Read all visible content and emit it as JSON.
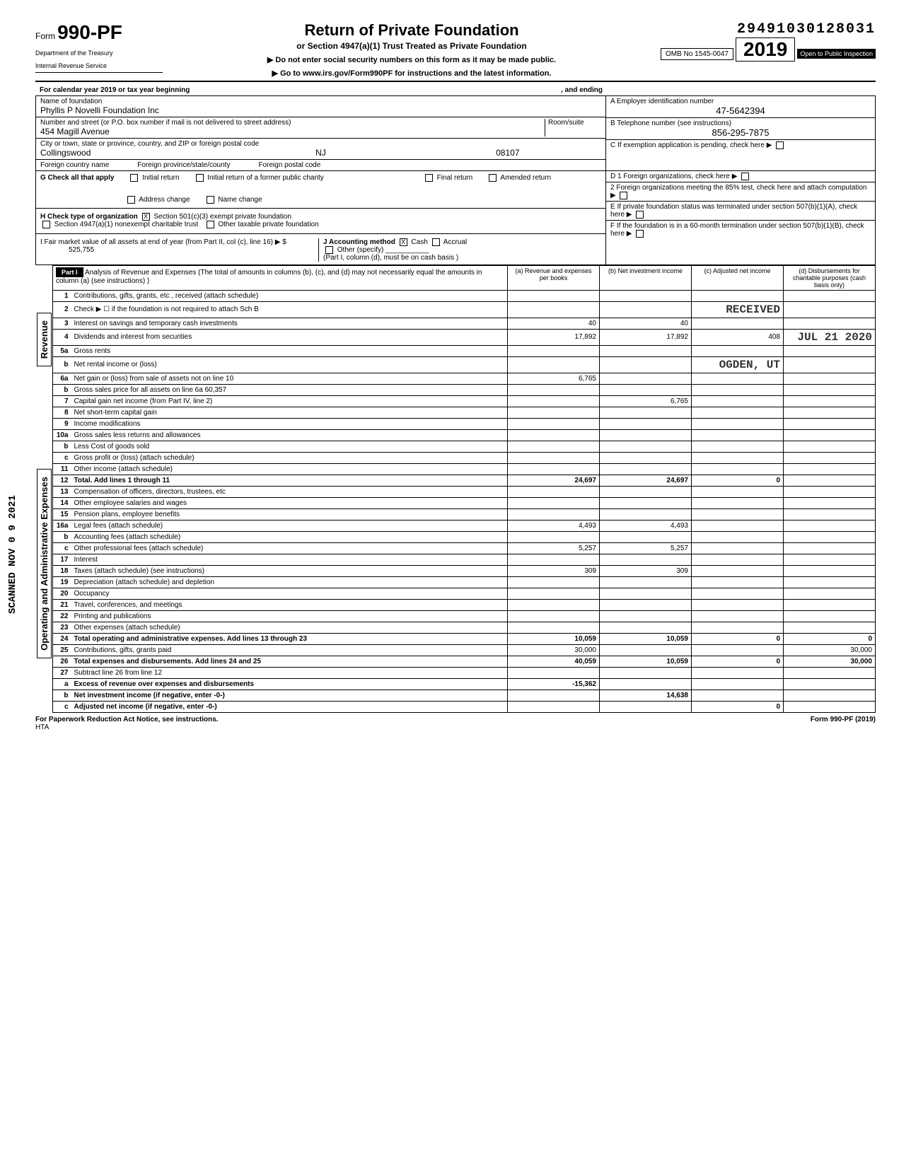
{
  "header": {
    "dln": "29491030128031",
    "form_number": "990-PF",
    "form_prefix": "Form",
    "dept1": "Department of the Treasury",
    "dept2": "Internal Revenue Service",
    "title": "Return of Private Foundation",
    "subtitle": "or Section 4947(a)(1) Trust Treated as Private Foundation",
    "instruct1": "▶  Do not enter social security numbers on this form as it may be made public.",
    "instruct2": "▶  Go to www.irs.gov/Form990PF for instructions and the latest information.",
    "omb": "OMB No 1545-0047",
    "year": "2019",
    "year_prefix": "20",
    "inspection": "Open to Public Inspection",
    "cal_year": "For calendar year 2019 or tax year beginning",
    "ending": ", and ending"
  },
  "entity": {
    "name_label": "Name of foundation",
    "name": "Phyllis P Novelli Foundation Inc",
    "addr_label": "Number and street (or P.O. box number if mail is not delivered to street address)",
    "room_label": "Room/suite",
    "addr": "454 Magill Avenue",
    "city_label": "City or town, state or province, country, and ZIP or foreign postal code",
    "city": "Collingswood",
    "state": "NJ",
    "zip": "08107",
    "foreign_country_label": "Foreign country name",
    "foreign_province_label": "Foreign province/state/county",
    "foreign_postal_label": "Foreign postal code",
    "ein_label": "A Employer identification number",
    "ein": "47-5642394",
    "phone_label": "B Telephone number (see instructions)",
    "phone": "856-295-7875",
    "c_label": "C  If exemption application is pending, check here",
    "d1_label": "D 1  Foreign organizations, check here",
    "d2_label": "2  Foreign organizations meeting the 85% test, check here and attach computation",
    "e_label": "E  If private foundation status was terminated under section 507(b)(1)(A), check here",
    "f_label": "F  If the foundation is in a 60-month termination under section 507(b)(1)(B), check here"
  },
  "section_g": {
    "label": "G  Check all that apply",
    "initial": "Initial return",
    "initial_former": "Initial return of a former public charity",
    "final": "Final return",
    "amended": "Amended return",
    "addr_change": "Address change",
    "name_change": "Name change"
  },
  "section_h": {
    "label": "H  Check type of organization",
    "opt1": "Section 501(c)(3) exempt private foundation",
    "opt2": "Section 4947(a)(1) nonexempt charitable trust",
    "opt3": "Other taxable private foundation"
  },
  "section_i": {
    "label": "I   Fair market value of all assets at end of year (from Part II, col (c), line 16) ▶ $",
    "value": "525,755"
  },
  "section_j": {
    "label": "J   Accounting method",
    "cash": "Cash",
    "accrual": "Accrual",
    "other": "Other (specify)",
    "note": "(Part I, column (d), must be on cash basis )"
  },
  "part1": {
    "header": "Part I",
    "desc": "Analysis of Revenue and Expenses (The total of amounts in columns (b), (c), and (d) may not necessarily equal the amounts in column (a) (see instructions) )",
    "col_a": "(a) Revenue and expenses per books",
    "col_b": "(b) Net investment income",
    "col_c": "(c) Adjusted net income",
    "col_d": "(d) Disbursements for charitable purposes (cash basis only)"
  },
  "sidelabels": {
    "revenue": "Revenue",
    "opex": "Operating and Administrative Expenses"
  },
  "rows": [
    {
      "n": "1",
      "label": "Contributions, gifts, grants, etc , received (attach schedule)",
      "a": "",
      "b": "",
      "c": "",
      "d": ""
    },
    {
      "n": "2",
      "label": "Check ▶ ☐ if the foundation is not required to attach Sch B",
      "a": "",
      "b": "",
      "c": "",
      "d": "",
      "stamp_c": "RECEIVED"
    },
    {
      "n": "3",
      "label": "Interest on savings and temporary cash investments",
      "a": "40",
      "b": "40",
      "c": "",
      "d": ""
    },
    {
      "n": "4",
      "label": "Dividends and interest from securities",
      "a": "17,892",
      "b": "17,892",
      "c": "408",
      "d": "JUL 21 2020",
      "stamp": true
    },
    {
      "n": "5a",
      "label": "Gross rents",
      "a": "",
      "b": "",
      "c": "",
      "d": ""
    },
    {
      "n": "b",
      "label": "Net rental income or (loss)",
      "a": "",
      "b": "",
      "c": "",
      "d": "",
      "stamp_c": "OGDEN, UT"
    },
    {
      "n": "6a",
      "label": "Net gain or (loss) from sale of assets not on line 10",
      "a": "6,765",
      "b": "",
      "c": "",
      "d": ""
    },
    {
      "n": "b",
      "label": "Gross sales price for all assets on line 6a                    60,357",
      "a": "",
      "b": "",
      "c": "",
      "d": ""
    },
    {
      "n": "7",
      "label": "Capital gain net income (from Part IV, line 2)",
      "a": "",
      "b": "6,765",
      "c": "",
      "d": ""
    },
    {
      "n": "8",
      "label": "Net short-term capital gain",
      "a": "",
      "b": "",
      "c": "",
      "d": ""
    },
    {
      "n": "9",
      "label": "Income modifications",
      "a": "",
      "b": "",
      "c": "",
      "d": ""
    },
    {
      "n": "10a",
      "label": "Gross sales less returns and allowances",
      "a": "",
      "b": "",
      "c": "",
      "d": ""
    },
    {
      "n": "b",
      "label": "Less Cost of goods sold",
      "a": "",
      "b": "",
      "c": "",
      "d": ""
    },
    {
      "n": "c",
      "label": "Gross profit or (loss) (attach schedule)",
      "a": "",
      "b": "",
      "c": "",
      "d": ""
    },
    {
      "n": "11",
      "label": "Other income (attach schedule)",
      "a": "",
      "b": "",
      "c": "",
      "d": ""
    },
    {
      "n": "12",
      "label": "Total. Add lines 1 through 11",
      "a": "24,697",
      "b": "24,697",
      "c": "0",
      "d": "",
      "bold": true
    },
    {
      "n": "13",
      "label": "Compensation of officers, directors, trustees, etc",
      "a": "",
      "b": "",
      "c": "",
      "d": ""
    },
    {
      "n": "14",
      "label": "Other employee salaries and wages",
      "a": "",
      "b": "",
      "c": "",
      "d": ""
    },
    {
      "n": "15",
      "label": "Pension plans, employee benefits",
      "a": "",
      "b": "",
      "c": "",
      "d": ""
    },
    {
      "n": "16a",
      "label": "Legal fees (attach schedule)",
      "a": "4,493",
      "b": "4,493",
      "c": "",
      "d": ""
    },
    {
      "n": "b",
      "label": "Accounting fees (attach schedule)",
      "a": "",
      "b": "",
      "c": "",
      "d": ""
    },
    {
      "n": "c",
      "label": "Other professional fees (attach schedule)",
      "a": "5,257",
      "b": "5,257",
      "c": "",
      "d": ""
    },
    {
      "n": "17",
      "label": "Interest",
      "a": "",
      "b": "",
      "c": "",
      "d": ""
    },
    {
      "n": "18",
      "label": "Taxes (attach schedule) (see instructions)",
      "a": "309",
      "b": "309",
      "c": "",
      "d": ""
    },
    {
      "n": "19",
      "label": "Depreciation (attach schedule) and depletion",
      "a": "",
      "b": "",
      "c": "",
      "d": ""
    },
    {
      "n": "20",
      "label": "Occupancy",
      "a": "",
      "b": "",
      "c": "",
      "d": ""
    },
    {
      "n": "21",
      "label": "Travel, conferences, and meetings",
      "a": "",
      "b": "",
      "c": "",
      "d": ""
    },
    {
      "n": "22",
      "label": "Printing and publications",
      "a": "",
      "b": "",
      "c": "",
      "d": ""
    },
    {
      "n": "23",
      "label": "Other expenses (attach schedule)",
      "a": "",
      "b": "",
      "c": "",
      "d": ""
    },
    {
      "n": "24",
      "label": "Total operating and administrative expenses. Add lines 13 through 23",
      "a": "10,059",
      "b": "10,059",
      "c": "0",
      "d": "0",
      "bold": true
    },
    {
      "n": "25",
      "label": "Contributions, gifts, grants paid",
      "a": "30,000",
      "b": "",
      "c": "",
      "d": "30,000"
    },
    {
      "n": "26",
      "label": "Total expenses and disbursements. Add lines 24 and 25",
      "a": "40,059",
      "b": "10,059",
      "c": "0",
      "d": "30,000",
      "bold": true
    },
    {
      "n": "27",
      "label": "Subtract line 26 from line 12",
      "a": "",
      "b": "",
      "c": "",
      "d": ""
    },
    {
      "n": "a",
      "label": "Excess of revenue over expenses and disbursements",
      "a": "-15,362",
      "b": "",
      "c": "",
      "d": "",
      "bold": true
    },
    {
      "n": "b",
      "label": "Net investment income (if negative, enter -0-)",
      "a": "",
      "b": "14,638",
      "c": "",
      "d": "",
      "bold": true
    },
    {
      "n": "c",
      "label": "Adjusted net income (if negative, enter -0-)",
      "a": "",
      "b": "",
      "c": "0",
      "d": "",
      "bold": true
    }
  ],
  "footer": {
    "left": "For Paperwork Reduction Act Notice, see instructions.",
    "hta": "HTA",
    "right": "Form 990-PF (2019)"
  },
  "margin_stamps": {
    "scanned": "SCANNED  NOV 0 9 2021"
  }
}
